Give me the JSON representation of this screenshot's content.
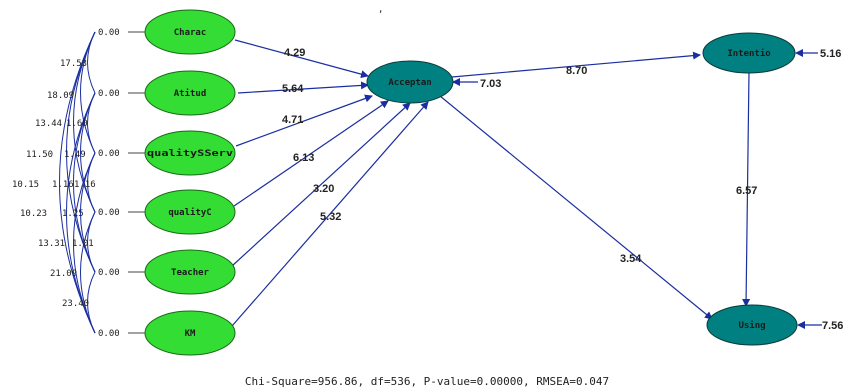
{
  "colors": {
    "exogenous": "#33dd33",
    "endogenous": "#008080",
    "edge": "#1a2ea0"
  },
  "nodes": {
    "charac": "Charac",
    "atitud": "Atitud",
    "quality_s": "qualitySServ",
    "quality_c": "qualityC",
    "teacher": "Teacher",
    "km": "KM",
    "acceptan": "Acceptan",
    "intentio": "Intentio",
    "using": "Using"
  },
  "variances": {
    "charac": "0.00",
    "atitud": "0.00",
    "quality_s": "0.00",
    "quality_c": "0.00",
    "teacher": "0.00",
    "km": "0.00"
  },
  "paths": {
    "charac_acceptan": "4.29",
    "atitud_acceptan": "5.64",
    "quality_s_acceptan": "4.71",
    "quality_c_acceptan": "6.13",
    "teacher_acceptan": "3.20",
    "km_acceptan": "5.32",
    "acceptan_intentio": "8.70",
    "acceptan_using": "3.54",
    "intentio_using": "6.57"
  },
  "errors": {
    "acceptan": "7.03",
    "intentio": "5.16",
    "using": "7.56"
  },
  "covariances": [
    "17.53",
    "18.09",
    "13.44",
    "1.60",
    "11.50",
    "1.49",
    "10.15",
    "1.16",
    "1.16",
    "10.23",
    "1.25",
    "13.31",
    "1.01",
    "21.09",
    "23.40"
  ],
  "footer": "Chi-Square=956.86, df=536, P-value=0.00000, RMSEA=0.047"
}
